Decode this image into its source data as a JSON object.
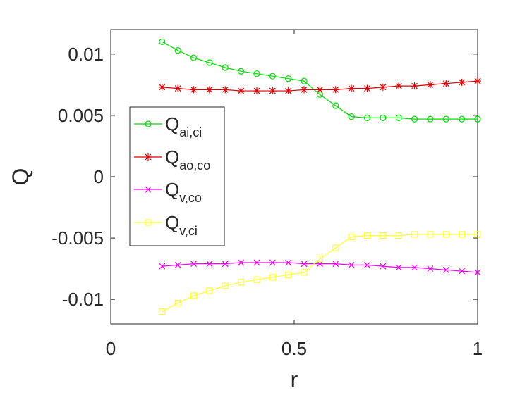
{
  "chart_data": {
    "type": "line",
    "title": "",
    "xlabel": "r",
    "ylabel": "Q",
    "xlim": [
      0,
      1
    ],
    "ylim": [
      -0.012,
      0.012
    ],
    "grid": false,
    "legend_position": "left",
    "x_ticks": [
      {
        "value": 0,
        "label": "0"
      },
      {
        "value": 0.5,
        "label": "0.5"
      },
      {
        "value": 1,
        "label": "1"
      }
    ],
    "y_ticks": [
      {
        "value": 0.01,
        "label": "0.01"
      },
      {
        "value": 0.005,
        "label": "0.005"
      },
      {
        "value": 0,
        "label": "0"
      },
      {
        "value": -0.005,
        "label": "-0.005"
      },
      {
        "value": -0.01,
        "label": "-0.01"
      }
    ],
    "x": [
      0.14,
      0.183,
      0.226,
      0.269,
      0.312,
      0.355,
      0.398,
      0.441,
      0.484,
      0.527,
      0.57,
      0.613,
      0.656,
      0.699,
      0.742,
      0.785,
      0.828,
      0.871,
      0.914,
      0.957,
      1.0
    ],
    "series": [
      {
        "name": "Q",
        "subscript": "ai,ci",
        "color": "#00dd00",
        "marker": "circle",
        "values": [
          0.011,
          0.0103,
          0.0097,
          0.0093,
          0.0089,
          0.0086,
          0.0084,
          0.0082,
          0.008,
          0.0078,
          0.0067,
          0.0058,
          0.0049,
          0.0048,
          0.0048,
          0.0048,
          0.0047,
          0.0047,
          0.0047,
          0.0047,
          0.0047
        ]
      },
      {
        "name": "Q",
        "subscript": "ao,co",
        "color": "#dd0000",
        "marker": "asterisk",
        "values": [
          0.0073,
          0.0072,
          0.0071,
          0.0071,
          0.0071,
          0.007,
          0.007,
          0.007,
          0.007,
          0.0071,
          0.0071,
          0.0071,
          0.0072,
          0.0072,
          0.0073,
          0.0074,
          0.0074,
          0.0075,
          0.0076,
          0.0077,
          0.0078
        ]
      },
      {
        "name": "Q",
        "subscript": "v,co",
        "color": "#ee00ee",
        "marker": "x",
        "values": [
          -0.0073,
          -0.0072,
          -0.0071,
          -0.0071,
          -0.0071,
          -0.007,
          -0.007,
          -0.007,
          -0.007,
          -0.0071,
          -0.0071,
          -0.0071,
          -0.0072,
          -0.0072,
          -0.0073,
          -0.0074,
          -0.0074,
          -0.0075,
          -0.0076,
          -0.0077,
          -0.0078
        ]
      },
      {
        "name": "Q",
        "subscript": "v,ci",
        "color": "#ffff33",
        "marker": "square",
        "values": [
          -0.011,
          -0.0103,
          -0.0097,
          -0.0093,
          -0.0089,
          -0.0086,
          -0.0084,
          -0.0082,
          -0.008,
          -0.0078,
          -0.0067,
          -0.0058,
          -0.0049,
          -0.0048,
          -0.0048,
          -0.0048,
          -0.0047,
          -0.0047,
          -0.0047,
          -0.0047,
          -0.0047
        ]
      }
    ]
  }
}
